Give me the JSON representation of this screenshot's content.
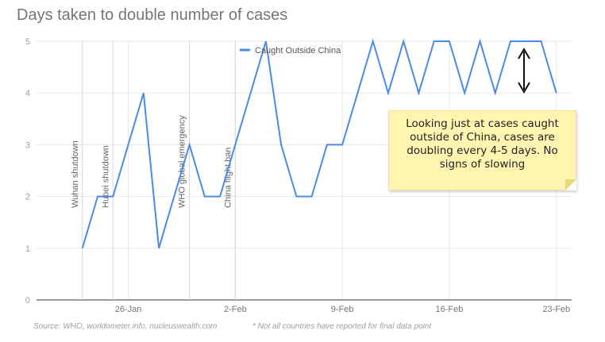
{
  "title": "Days taken to double number of cases",
  "footer": {
    "source": "Source: WHO, worldometer.info, nucleuswealth.com",
    "note": "* Not all countries have reported for final data point"
  },
  "annotation": {
    "text": "Looking just at cases caught outside of China, cases are doubling every 4-5 days. No signs of slowing"
  },
  "colors": {
    "line": "#4a8ae8",
    "grid": "#e8e8e8",
    "axis": "#333333",
    "text": "#757575",
    "note_bg": "#fff4b0"
  },
  "chart_data": {
    "type": "line",
    "title": "Days taken to double number of cases",
    "xlabel": "",
    "ylabel": "",
    "ylim": [
      0,
      5
    ],
    "y_ticks": [
      0,
      1,
      2,
      3,
      4,
      5
    ],
    "x_start": "2020-01-20",
    "x_end": "2020-02-24",
    "x_ticks": [
      {
        "date": "2020-01-26",
        "label": "26-Jan"
      },
      {
        "date": "2020-02-02",
        "label": "2-Feb"
      },
      {
        "date": "2020-02-09",
        "label": "9-Feb"
      },
      {
        "date": "2020-02-16",
        "label": "16-Feb"
      },
      {
        "date": "2020-02-23",
        "label": "23-Feb"
      }
    ],
    "legend": {
      "position": "top",
      "entries": [
        "Caught Outside China"
      ]
    },
    "series": [
      {
        "name": "Caught Outside China",
        "x": [
          "2020-01-23",
          "2020-01-24",
          "2020-01-25",
          "2020-01-26",
          "2020-01-27",
          "2020-01-28",
          "2020-01-29",
          "2020-01-30",
          "2020-01-31",
          "2020-02-01",
          "2020-02-02",
          "2020-02-03",
          "2020-02-04",
          "2020-02-05",
          "2020-02-06",
          "2020-02-07",
          "2020-02-08",
          "2020-02-09",
          "2020-02-10",
          "2020-02-11",
          "2020-02-12",
          "2020-02-13",
          "2020-02-14",
          "2020-02-15",
          "2020-02-16",
          "2020-02-17",
          "2020-02-18",
          "2020-02-19",
          "2020-02-20",
          "2020-02-21",
          "2020-02-22",
          "2020-02-23"
        ],
        "values": [
          1,
          2,
          2,
          3,
          4,
          1,
          2,
          3,
          2,
          2,
          3,
          4,
          5,
          3,
          2,
          2,
          3,
          3,
          4,
          5,
          4,
          5,
          4,
          5,
          5,
          4,
          5,
          4,
          5,
          5,
          5,
          4
        ]
      }
    ],
    "events": [
      {
        "date": "2020-01-23",
        "label": "Wuhan shutdown"
      },
      {
        "date": "2020-01-25",
        "label": "Hubei shutdown"
      },
      {
        "date": "2020-01-30",
        "label": "WHO global emergency"
      },
      {
        "date": "2020-02-02",
        "label": "China flight ban"
      }
    ]
  }
}
